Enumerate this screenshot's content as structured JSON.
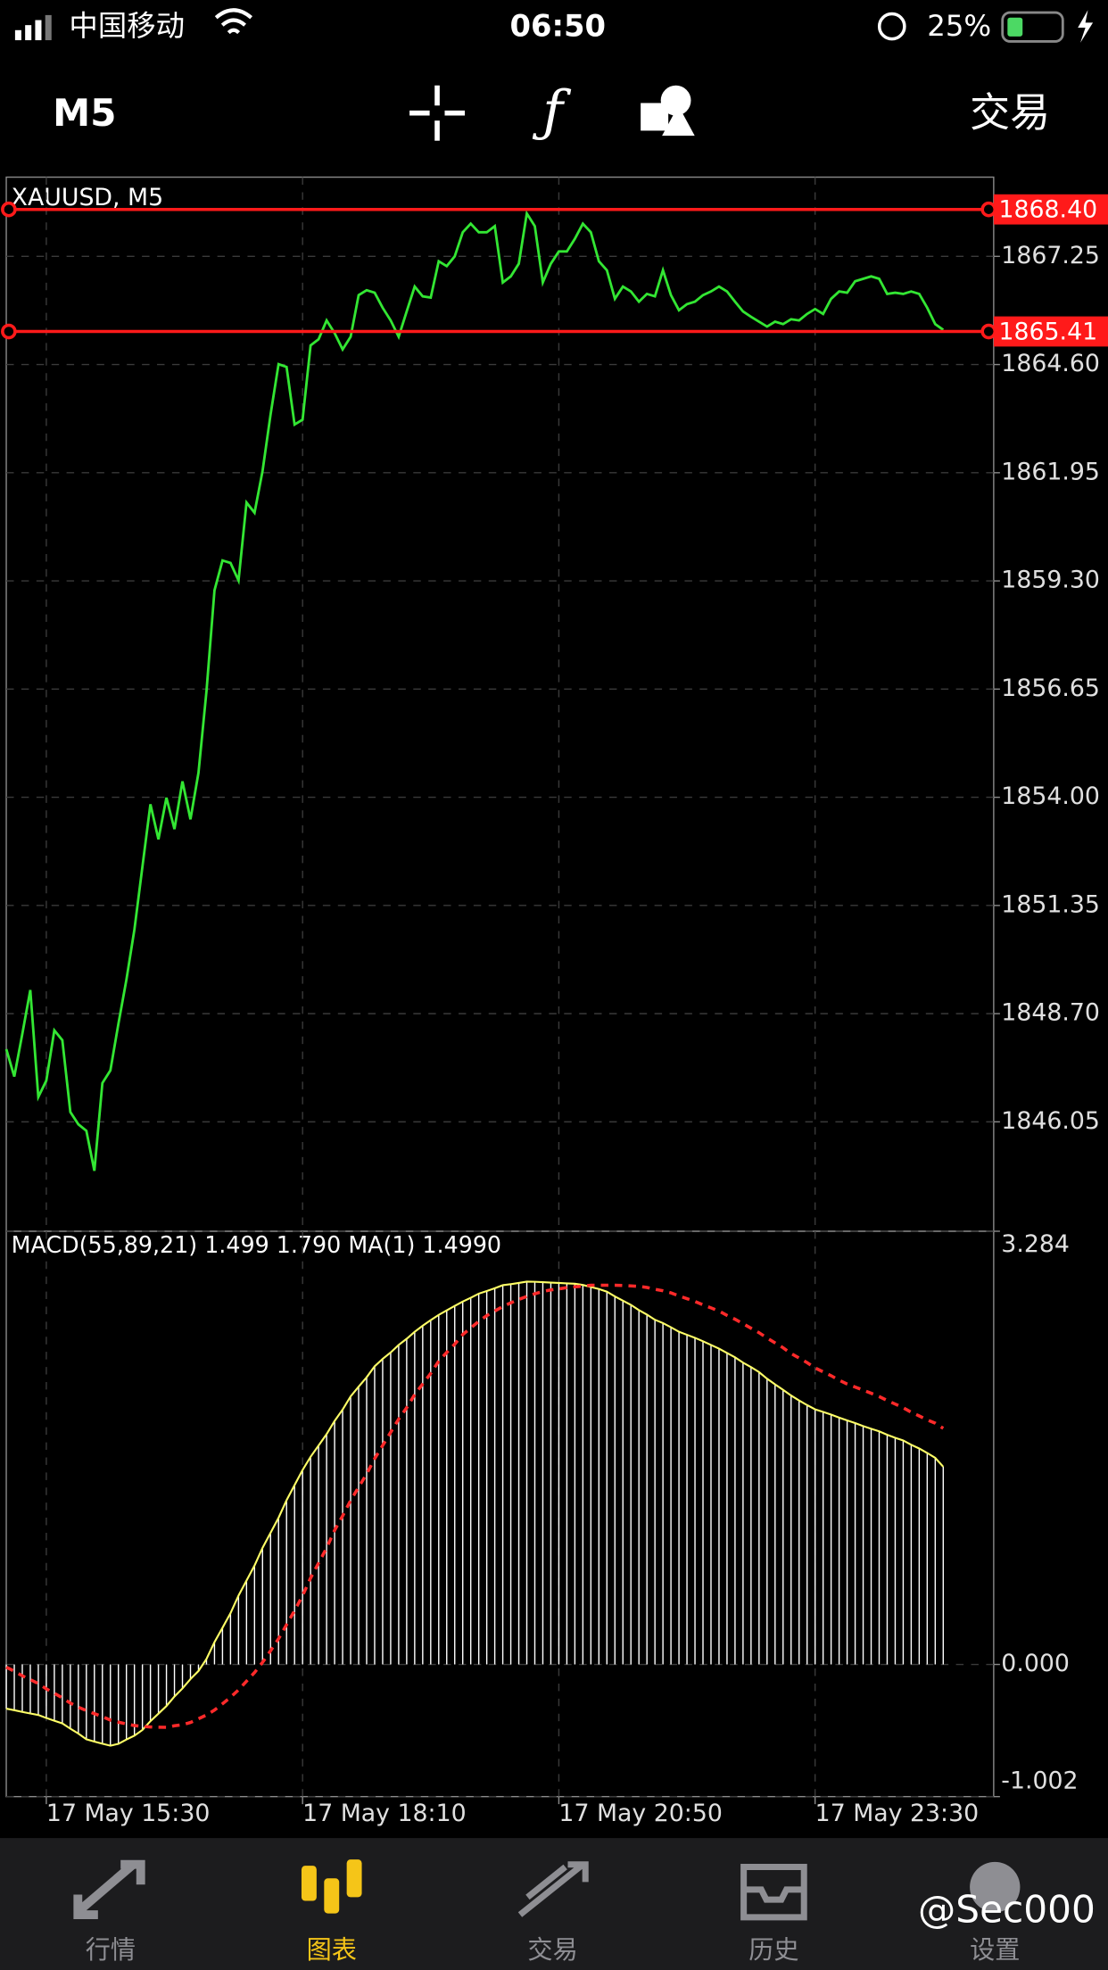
{
  "status_bar": {
    "carrier": "中国移动",
    "time": "06:50",
    "battery": "25%"
  },
  "toolbar": {
    "timeframe": "M5",
    "trade": "交易"
  },
  "tabs": [
    "行情",
    "图表",
    "交易",
    "历史",
    "设置"
  ],
  "watermark": "@Sec000",
  "chart_data": [
    {
      "type": "line",
      "title": "XAUUSD, M5",
      "xlim": [
        0,
        123.3
      ],
      "ylim": [
        1843.37,
        1869.19
      ],
      "yticks": [
        1867.25,
        {
          "value": 1864.6,
          "label": "1864.60"
        },
        1861.95,
        {
          "value": 1859.3,
          "label": "1859.30"
        },
        1856.65,
        {
          "value": 1854,
          "label": "1854.00"
        },
        1851.35,
        {
          "value": 1848.7,
          "label": "1848.70"
        },
        1846.05
      ],
      "grid": true,
      "hlines": [
        {
          "value": 1868.4,
          "label": "1868.40",
          "color": "#ff1a1a"
        },
        {
          "value": 1865.41,
          "label": "1865.41",
          "color": "#ff1a1a"
        }
      ],
      "series": [
        {
          "color": "#33e633",
          "values": [
            1847.83,
            1847.16,
            1848.2,
            1849.28,
            1846.66,
            1847.06,
            1848.29,
            1848.05,
            1846.29,
            1845.99,
            1845.83,
            1844.85,
            1847,
            1847.31,
            1848.45,
            1849.53,
            1850.76,
            1852.3,
            1853.83,
            1852.97,
            1853.99,
            1853.22,
            1854.39,
            1853.46,
            1854.6,
            1856.6,
            1859.07,
            1859.8,
            1859.74,
            1859.31,
            1861.22,
            1860.97,
            1861.99,
            1863.37,
            1864.61,
            1864.54,
            1863.13,
            1863.25,
            1865.07,
            1865.22,
            1865.68,
            1865.37,
            1864.97,
            1865.28,
            1866.3,
            1866.42,
            1866.36,
            1865.99,
            1865.68,
            1865.28,
            1865.9,
            1866.51,
            1866.27,
            1866.24,
            1867.13,
            1867.01,
            1867.25,
            1867.84,
            1868.05,
            1867.84,
            1867.84,
            1867.99,
            1866.61,
            1866.76,
            1867.07,
            1868.3,
            1867.99,
            1866.61,
            1867.07,
            1867.37,
            1867.37,
            1867.68,
            1868.05,
            1867.84,
            1867.13,
            1866.91,
            1866.21,
            1866.51,
            1866.39,
            1866.14,
            1866.33,
            1866.27,
            1866.91,
            1866.3,
            1865.93,
            1866.08,
            1866.14,
            1866.3,
            1866.39,
            1866.51,
            1866.39,
            1866.14,
            1865.9,
            1865.77,
            1865.65,
            1865.53,
            1865.65,
            1865.59,
            1865.71,
            1865.68,
            1865.84,
            1865.96,
            1865.84,
            1866.21,
            1866.39,
            1866.36,
            1866.64,
            1866.7,
            1866.76,
            1866.7,
            1866.33,
            1866.36,
            1866.33,
            1866.39,
            1866.33,
            1865.99,
            1865.59,
            1865.45
          ]
        }
      ]
    },
    {
      "type": "macd",
      "title": "MACD(55,89,21) 1.499 1.790 MA(1) 1.4990",
      "xlim": [
        0,
        123.3
      ],
      "ylim": [
        -1.002,
        3.284
      ],
      "yticks": [
        3.284,
        {
          "value": 0,
          "label": "0.000"
        },
        -1.002
      ],
      "xticks": [
        {
          "value": 5,
          "label": "17 May 15:30"
        },
        {
          "value": 37,
          "label": "17 May 18:10"
        },
        {
          "value": 69,
          "label": "17 May 20:50"
        },
        {
          "value": 101,
          "label": "17 May 23:30"
        }
      ],
      "grid": true,
      "series": [
        {
          "style": "histogram",
          "color": "#ffffff",
          "values": [
            -0.335,
            -0.347,
            -0.36,
            -0.372,
            -0.383,
            -0.406,
            -0.427,
            -0.447,
            -0.487,
            -0.524,
            -0.567,
            -0.585,
            -0.601,
            -0.616,
            -0.602,
            -0.569,
            -0.54,
            -0.497,
            -0.43,
            -0.373,
            -0.315,
            -0.243,
            -0.182,
            -0.111,
            -0.05,
            0.042,
            0.169,
            0.278,
            0.389,
            0.522,
            0.636,
            0.75,
            0.884,
            0.998,
            1.112,
            1.245,
            1.36,
            1.474,
            1.574,
            1.66,
            1.746,
            1.846,
            1.932,
            2.032,
            2.106,
            2.177,
            2.26,
            2.316,
            2.365,
            2.422,
            2.469,
            2.522,
            2.568,
            2.61,
            2.65,
            2.684,
            2.718,
            2.751,
            2.78,
            2.811,
            2.831,
            2.852,
            2.875,
            2.883,
            2.892,
            2.902,
            2.901,
            2.898,
            2.895,
            2.892,
            2.889,
            2.886,
            2.877,
            2.861,
            2.846,
            2.826,
            2.79,
            2.758,
            2.726,
            2.686,
            2.652,
            2.613,
            2.588,
            2.556,
            2.522,
            2.499,
            2.476,
            2.45,
            2.422,
            2.394,
            2.361,
            2.328,
            2.288,
            2.254,
            2.216,
            2.166,
            2.123,
            2.082,
            2.039,
            2.001,
            1.966,
            1.934,
            1.914,
            1.894,
            1.871,
            1.85,
            1.83,
            1.807,
            1.787,
            1.767,
            1.741,
            1.718,
            1.698,
            1.665,
            1.637,
            1.603,
            1.566,
            1.499
          ]
        },
        {
          "style": "line",
          "color": "#ffff66",
          "values": [
            -0.335,
            -0.347,
            -0.36,
            -0.372,
            -0.383,
            -0.406,
            -0.427,
            -0.447,
            -0.487,
            -0.524,
            -0.567,
            -0.585,
            -0.601,
            -0.616,
            -0.602,
            -0.569,
            -0.54,
            -0.497,
            -0.43,
            -0.373,
            -0.315,
            -0.243,
            -0.182,
            -0.111,
            -0.05,
            0.042,
            0.169,
            0.278,
            0.389,
            0.522,
            0.636,
            0.75,
            0.884,
            0.998,
            1.112,
            1.245,
            1.36,
            1.474,
            1.574,
            1.66,
            1.746,
            1.846,
            1.932,
            2.032,
            2.106,
            2.177,
            2.26,
            2.316,
            2.365,
            2.422,
            2.469,
            2.522,
            2.568,
            2.61,
            2.65,
            2.684,
            2.718,
            2.751,
            2.78,
            2.811,
            2.831,
            2.852,
            2.875,
            2.883,
            2.892,
            2.902,
            2.901,
            2.898,
            2.895,
            2.892,
            2.889,
            2.886,
            2.877,
            2.861,
            2.846,
            2.826,
            2.79,
            2.758,
            2.726,
            2.686,
            2.652,
            2.613,
            2.588,
            2.556,
            2.522,
            2.499,
            2.476,
            2.45,
            2.422,
            2.394,
            2.361,
            2.328,
            2.288,
            2.254,
            2.216,
            2.166,
            2.123,
            2.082,
            2.039,
            2.001,
            1.966,
            1.934,
            1.914,
            1.894,
            1.871,
            1.85,
            1.83,
            1.807,
            1.787,
            1.767,
            1.741,
            1.718,
            1.698,
            1.665,
            1.637,
            1.603,
            1.566,
            1.499
          ]
        },
        {
          "style": "dashed",
          "color": "#ff2a2a",
          "values": [
            -0.021,
            -0.051,
            -0.086,
            -0.115,
            -0.145,
            -0.185,
            -0.219,
            -0.253,
            -0.293,
            -0.324,
            -0.35,
            -0.373,
            -0.396,
            -0.422,
            -0.438,
            -0.451,
            -0.463,
            -0.47,
            -0.474,
            -0.476,
            -0.477,
            -0.465,
            -0.457,
            -0.44,
            -0.412,
            -0.383,
            -0.346,
            -0.298,
            -0.249,
            -0.193,
            -0.127,
            -0.061,
            0.016,
            0.103,
            0.195,
            0.301,
            0.408,
            0.522,
            0.655,
            0.769,
            0.883,
            1.017,
            1.126,
            1.243,
            1.344,
            1.444,
            1.56,
            1.66,
            1.76,
            1.86,
            1.946,
            2.046,
            2.126,
            2.206,
            2.299,
            2.365,
            2.428,
            2.501,
            2.551,
            2.601,
            2.644,
            2.679,
            2.713,
            2.741,
            2.767,
            2.79,
            2.81,
            2.828,
            2.839,
            2.847,
            2.857,
            2.863,
            2.868,
            2.875,
            2.875,
            2.875,
            2.875,
            2.873,
            2.87,
            2.866,
            2.858,
            2.844,
            2.833,
            2.817,
            2.794,
            2.773,
            2.752,
            2.726,
            2.703,
            2.679,
            2.646,
            2.617,
            2.583,
            2.549,
            2.515,
            2.475,
            2.438,
            2.401,
            2.357,
            2.323,
            2.288,
            2.248,
            2.218,
            2.189,
            2.155,
            2.126,
            2.103,
            2.08,
            2.056,
            2.031,
            2.001,
            1.974,
            1.946,
            1.912,
            1.884,
            1.854,
            1.829,
            1.79
          ]
        }
      ]
    }
  ]
}
